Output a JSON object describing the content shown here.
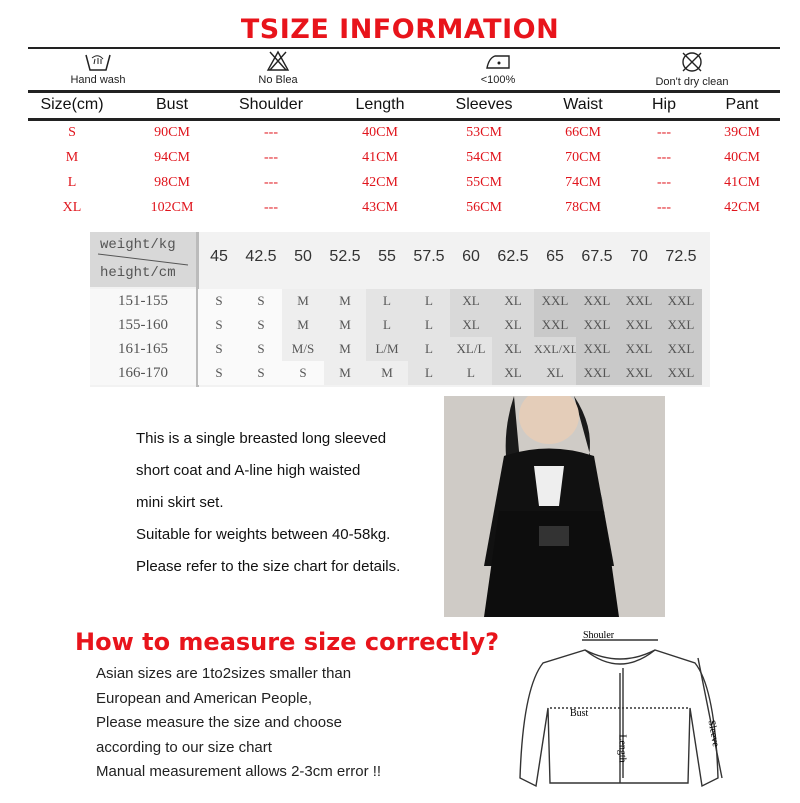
{
  "title": "TSIZE INFORMATION",
  "care": [
    {
      "icon": "hand-wash-icon",
      "label": "Hand wash"
    },
    {
      "icon": "no-bleach-icon",
      "label": "No Blea"
    },
    {
      "icon": "iron-icon",
      "label": "<100%"
    },
    {
      "icon": "no-dry-clean-icon",
      "label": "Don't dry clean"
    }
  ],
  "size_table": {
    "headers": [
      "Size(cm)",
      "Bust",
      "Shoulder",
      "Length",
      "Sleeves",
      "Waist",
      "Hip",
      "Pant"
    ],
    "rows": [
      [
        "S",
        "90CM",
        "---",
        "40CM",
        "53CM",
        "66CM",
        "---",
        "39CM"
      ],
      [
        "M",
        "94CM",
        "---",
        "41CM",
        "54CM",
        "70CM",
        "---",
        "40CM"
      ],
      [
        "L",
        "98CM",
        "---",
        "42CM",
        "55CM",
        "74CM",
        "---",
        "41CM"
      ],
      [
        "XL",
        "102CM",
        "---",
        "43CM",
        "56CM",
        "78CM",
        "---",
        "42CM"
      ]
    ]
  },
  "weight_chart": {
    "weight_label": "weight/kg",
    "height_label": "height/cm",
    "weights": [
      "45",
      "42.5",
      "50",
      "52.5",
      "55",
      "57.5",
      "60",
      "62.5",
      "65",
      "67.5",
      "70",
      "72.5"
    ],
    "rows": [
      {
        "height": "151-155",
        "sizes": [
          "S",
          "S",
          "M",
          "M",
          "L",
          "L",
          "XL",
          "XL",
          "XXL",
          "XXL",
          "XXL",
          "XXL"
        ]
      },
      {
        "height": "155-160",
        "sizes": [
          "S",
          "S",
          "M",
          "M",
          "L",
          "L",
          "XL",
          "XL",
          "XXL",
          "XXL",
          "XXL",
          "XXL"
        ]
      },
      {
        "height": "161-165",
        "sizes": [
          "S",
          "S",
          "M/S",
          "M",
          "L/M",
          "L",
          "XL/L",
          "XL",
          "XXL/XL",
          "XXL",
          "XXL",
          "XXL"
        ]
      },
      {
        "height": "166-170",
        "sizes": [
          "S",
          "S",
          "S",
          "M",
          "M",
          "L",
          "L",
          "XL",
          "XL",
          "XXL",
          "XXL",
          "XXL"
        ]
      }
    ]
  },
  "description": [
    "This is a single breasted long sleeved",
    "short coat and A-line high waisted",
    "mini skirt set.",
    "Suitable for weights between 40-58kg.",
    "Please refer to the size chart for details."
  ],
  "howto_title": "How to measure size correctly?",
  "notes": [
    "Asian sizes are 1to2sizes smaller than",
    "European and American People,",
    "Please measure the size and choose",
    "according to our size chart",
    "Manual measurement allows 2-3cm error !!"
  ],
  "diagram": {
    "shoulder": "Shouler",
    "bust": "Bust",
    "length": "Length",
    "sleeve": "Sleeve"
  },
  "colors": {
    "accent": "#e8141b"
  }
}
